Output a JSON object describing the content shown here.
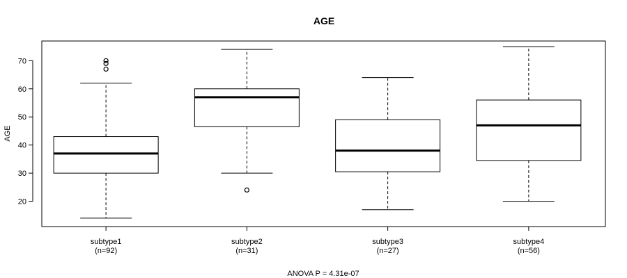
{
  "chart_data": {
    "type": "boxplot",
    "title": "AGE",
    "ylabel": "AGE",
    "xlabel": "",
    "ylim": [
      11,
      77
    ],
    "yticks": [
      20,
      30,
      40,
      50,
      60,
      70
    ],
    "footnote": "ANOVA P = 4.31e-07",
    "groups": [
      {
        "name": "subtype1",
        "n_label": "(n=92)",
        "whisker_low": 14,
        "q1": 30,
        "median": 37,
        "q3": 43,
        "whisker_high": 62,
        "outliers": [
          67,
          69,
          70
        ]
      },
      {
        "name": "subtype2",
        "n_label": "(n=31)",
        "whisker_low": 30,
        "q1": 46.5,
        "median": 57,
        "q3": 60,
        "whisker_high": 74,
        "outliers": [
          24
        ]
      },
      {
        "name": "subtype3",
        "n_label": "(n=27)",
        "whisker_low": 17,
        "q1": 30.5,
        "median": 38,
        "q3": 49,
        "whisker_high": 64,
        "outliers": []
      },
      {
        "name": "subtype4",
        "n_label": "(n=56)",
        "whisker_low": 20,
        "q1": 34.5,
        "median": 47,
        "q3": 56,
        "whisker_high": 75,
        "outliers": []
      }
    ]
  }
}
